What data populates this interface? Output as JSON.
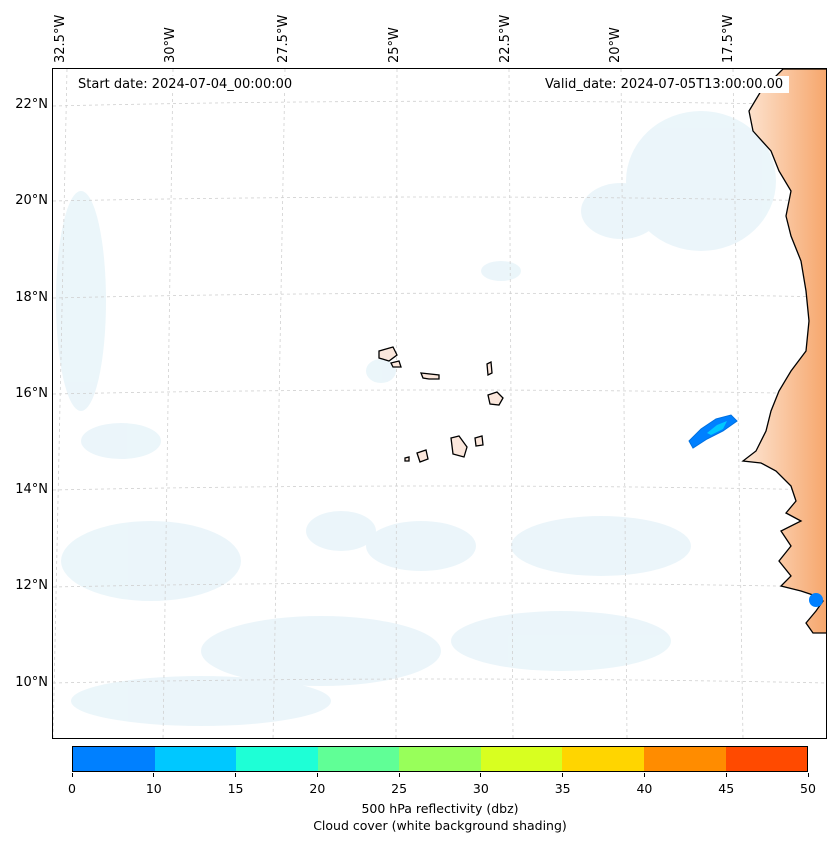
{
  "header": {
    "start_date": "Start date: 2024-07-04_00:00:00",
    "valid_date": "Valid_date: 2024-07-05T13:00:00.00"
  },
  "map": {
    "lon_labels": [
      "32.5°W",
      "30°W",
      "27.5°W",
      "25°W",
      "22.5°W",
      "20°W",
      "17.5°W"
    ],
    "lat_labels": [
      "22°N",
      "20°N",
      "18°N",
      "16°N",
      "14°N",
      "12°N",
      "10°N"
    ]
  },
  "colorbar": {
    "colors": [
      "#0080ff",
      "#00c8ff",
      "#1effd6",
      "#60ff96",
      "#98ff5a",
      "#d8ff20",
      "#ffd500",
      "#ff8c00",
      "#ff4a00"
    ],
    "ticks": [
      "0",
      "10",
      "15",
      "20",
      "25",
      "30",
      "35",
      "40",
      "45",
      "50"
    ],
    "label": "500 hPa reflectivity (dbz)",
    "sublabel": "Cloud cover (white background shading)"
  }
}
